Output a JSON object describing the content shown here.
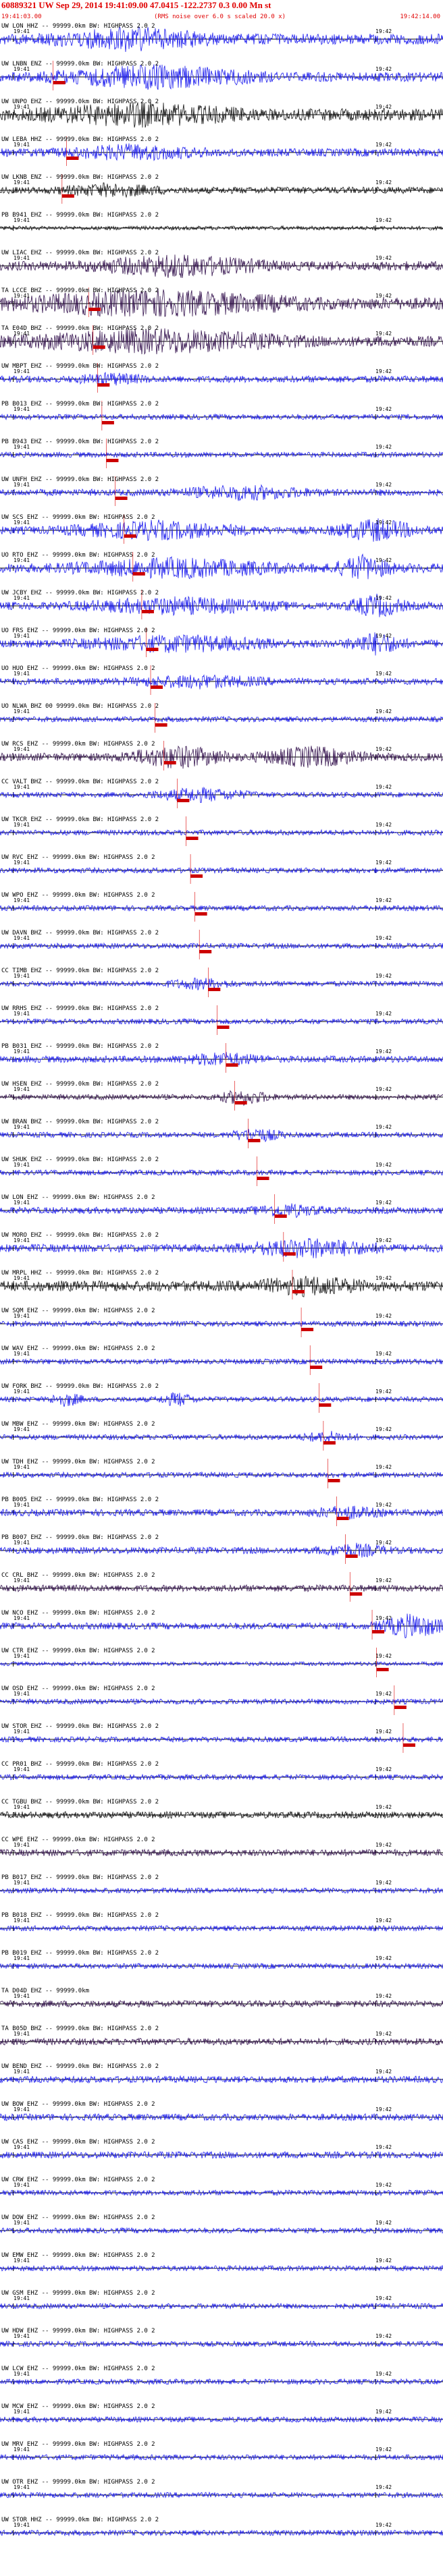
{
  "header": {
    "title": "60889321 UW Sep 29, 2014 19:41:09.00   47.0415 -122.2737   0.3 0.00 Mn st",
    "start_time": "19:41:03.00",
    "note": "(RMS noise over 6.0 s scaled 20.0 x)",
    "end_time": "19:42:14.00"
  },
  "tick_labels": {
    "first": "19:41",
    "second": "19:42"
  },
  "colors": {
    "blue": "#1a1aee",
    "black": "#111111",
    "purple": "#33114d",
    "red": "#dd0000",
    "pick": "#cc0000"
  },
  "traces": [
    {
      "label": "UW LON HHZ -- 99999.0km BW: HIGHPASS  2.0  2",
      "color": "blue",
      "amp": 0.8,
      "events": [
        [
          0.3,
          1.2,
          0.22
        ]
      ],
      "pick": null
    },
    {
      "label": "UW LNBN ENZ -- 99999.0km BW: HIGHPASS  2.0  2",
      "color": "blue",
      "amp": 0.7,
      "events": [
        [
          0.35,
          1.3,
          0.3
        ]
      ],
      "pick": 0.12
    },
    {
      "label": "UW UNPO EHZ -- 99999.0km BW: HIGHPASS  2.0  2",
      "color": "black",
      "amp": 0.9,
      "events": [
        [
          0.32,
          1.1,
          0.28
        ]
      ],
      "pick": null
    },
    {
      "label": "UW LEBA HHZ -- 99999.0km BW: HIGHPASS  2.0  2",
      "color": "blue",
      "amp": 0.6,
      "events": [
        [
          0.3,
          0.8,
          0.2
        ]
      ],
      "pick": 0.15
    },
    {
      "label": "UW LKNB ENZ -- 99999.0km BW: HIGHPASS  2.0  2",
      "color": "black",
      "amp": 0.5,
      "events": [
        [
          0.25,
          0.7,
          0.15
        ]
      ],
      "pick": 0.14
    },
    {
      "label": "PB B941 EHZ -- 99999.0km BW: HIGHPASS  2.0  2",
      "color": "black",
      "amp": 0.3,
      "events": [],
      "pick": null
    },
    {
      "label": "UW LIAC EHZ -- 99999.0km BW: HIGHPASS  2.0  2",
      "color": "purple",
      "amp": 0.7,
      "events": [
        [
          0.4,
          1.2,
          0.25
        ]
      ],
      "pick": null
    },
    {
      "label": "TA LCCE BHZ -- 99999.0km BW: HIGHPASS  2.0  2",
      "color": "purple",
      "amp": 0.9,
      "events": [
        [
          0.35,
          1.4,
          0.4
        ]
      ],
      "pick": 0.2
    },
    {
      "label": "TA E04D BHZ -- 99999.0km BW: HIGHPASS  2.0  2",
      "color": "purple",
      "amp": 0.8,
      "events": [
        [
          0.35,
          1.3,
          0.38
        ]
      ],
      "pick": 0.21
    },
    {
      "label": "UW MBPT EHZ -- 99999.0km BW: HIGHPASS  2.0  2",
      "color": "blue",
      "amp": 0.5,
      "events": [
        [
          0.25,
          0.6,
          0.1
        ]
      ],
      "pick": 0.22
    },
    {
      "label": "PB B013 EHZ -- 99999.0km BW: HIGHPASS  2.0  2",
      "color": "blue",
      "amp": 0.4,
      "events": [],
      "pick": 0.23
    },
    {
      "label": "PB B943 EHZ -- 99999.0km BW: HIGHPASS  2.0  2",
      "color": "blue",
      "amp": 0.4,
      "events": [],
      "pick": 0.24
    },
    {
      "label": "UW UNFH EHZ -- 99999.0km BW: HIGHPASS  2.0  2",
      "color": "blue",
      "amp": 0.5,
      "events": [
        [
          0.55,
          0.8,
          0.2
        ]
      ],
      "pick": 0.26
    },
    {
      "label": "UW SCS EHZ -- 99999.0km BW: HIGHPASS  2.0  2",
      "color": "blue",
      "amp": 0.6,
      "events": [
        [
          0.35,
          1.0,
          0.25
        ],
        [
          0.85,
          1.3,
          0.12
        ]
      ],
      "pick": 0.28
    },
    {
      "label": "UO RTO EHZ -- 99999.0km BW: HIGHPASS  2.0  2",
      "color": "blue",
      "amp": 0.7,
      "events": [
        [
          0.4,
          1.0,
          0.3
        ],
        [
          0.82,
          1.4,
          0.08
        ]
      ],
      "pick": 0.3
    },
    {
      "label": "UW JCBY EHZ -- 99999.0km BW: HIGHPASS  2.0  2",
      "color": "blue",
      "amp": 0.6,
      "events": [
        [
          0.4,
          0.9,
          0.28
        ],
        [
          0.85,
          1.3,
          0.08
        ]
      ],
      "pick": 0.32
    },
    {
      "label": "UO FRS EHZ -- 99999.0km BW: HIGHPASS  2.0  2",
      "color": "blue",
      "amp": 0.6,
      "events": [
        [
          0.4,
          0.9,
          0.28
        ],
        [
          0.85,
          1.3,
          0.08
        ]
      ],
      "pick": 0.33
    },
    {
      "label": "UO HUO EHZ -- 99999.0km BW: HIGHPASS  2.0  2",
      "color": "blue",
      "amp": 0.5,
      "events": [
        [
          0.45,
          0.7,
          0.2
        ]
      ],
      "pick": 0.34
    },
    {
      "label": "UO NLWA BHZ 00 99999.0km BW: HIGHPASS  2.0  2",
      "color": "blue",
      "amp": 0.4,
      "events": [],
      "pick": 0.35
    },
    {
      "label": "UW RCS EHZ -- 99999.0km BW: HIGHPASS  2.0  2",
      "color": "purple",
      "amp": 0.6,
      "events": [
        [
          0.4,
          1.3,
          0.15
        ],
        [
          0.7,
          1.2,
          0.15
        ]
      ],
      "pick": 0.37
    },
    {
      "label": "CC VALT BHZ -- 99999.0km BW: HIGHPASS  2.0  2",
      "color": "blue",
      "amp": 0.4,
      "events": [
        [
          0.45,
          0.8,
          0.15
        ]
      ],
      "pick": 0.4
    },
    {
      "label": "UW TKCR EHZ -- 99999.0km BW: HIGHPASS  2.0  2",
      "color": "blue",
      "amp": 0.4,
      "events": [],
      "pick": 0.42
    },
    {
      "label": "UW RVC EHZ -- 99999.0km BW: HIGHPASS  2.0  2",
      "color": "blue",
      "amp": 0.4,
      "events": [],
      "pick": 0.43
    },
    {
      "label": "UW WPO EHZ -- 99999.0km BW: HIGHPASS  2.0  2",
      "color": "blue",
      "amp": 0.4,
      "events": [],
      "pick": 0.44
    },
    {
      "label": "UW DAVN BHZ -- 99999.0km BW: HIGHPASS  2.0  2",
      "color": "blue",
      "amp": 0.4,
      "events": [],
      "pick": 0.45
    },
    {
      "label": "CC TIMB EHZ -- 99999.0km BW: HIGHPASS  2.0  2",
      "color": "blue",
      "amp": 0.4,
      "events": [
        [
          0.45,
          0.6,
          0.1
        ]
      ],
      "pick": 0.47
    },
    {
      "label": "UW RRHS EHZ -- 99999.0km BW: HIGHPASS  2.0  2",
      "color": "blue",
      "amp": 0.4,
      "events": [],
      "pick": 0.49
    },
    {
      "label": "PB B031 EHZ -- 99999.0km BW: HIGHPASS  2.0  2",
      "color": "blue",
      "amp": 0.5,
      "events": [
        [
          0.5,
          0.7,
          0.12
        ]
      ],
      "pick": 0.51
    },
    {
      "label": "UW HSEN EHZ -- 99999.0km BW: HIGHPASS  2.0  2",
      "color": "purple",
      "amp": 0.4,
      "events": [
        [
          0.55,
          0.9,
          0.08
        ]
      ],
      "pick": 0.53
    },
    {
      "label": "UW BRAN BHZ -- 99999.0km BW: HIGHPASS  2.0  2",
      "color": "blue",
      "amp": 0.4,
      "events": [
        [
          0.58,
          0.8,
          0.08
        ]
      ],
      "pick": 0.56
    },
    {
      "label": "UW SHUK EHZ -- 99999.0km BW: HIGHPASS  2.0  2",
      "color": "blue",
      "amp": 0.4,
      "events": [],
      "pick": 0.58
    },
    {
      "label": "UW LON EHZ -- 99999.0km BW: HIGHPASS  2.0  2",
      "color": "blue",
      "amp": 0.5,
      "events": [
        [
          0.65,
          0.7,
          0.1
        ]
      ],
      "pick": 0.62
    },
    {
      "label": "UW MORO EHZ -- 99999.0km BW: HIGHPASS  2.0  2",
      "color": "blue",
      "amp": 0.6,
      "events": [
        [
          0.7,
          1.1,
          0.2
        ]
      ],
      "pick": 0.64
    },
    {
      "label": "UW MRPL HHZ -- 99999.0km BW: HIGHPASS  2.0  2",
      "color": "black",
      "amp": 0.8,
      "events": [
        [
          0.7,
          0.9,
          0.15
        ]
      ],
      "pick": 0.66
    },
    {
      "label": "UW SQM EHZ -- 99999.0km BW: HIGHPASS  2.0  2",
      "color": "blue",
      "amp": 0.4,
      "events": [],
      "pick": 0.68
    },
    {
      "label": "UW WAV EHZ -- 99999.0km BW: HIGHPASS  2.0  2",
      "color": "blue",
      "amp": 0.4,
      "events": [],
      "pick": 0.7
    },
    {
      "label": "UW FORK BHZ -- 99999.0km BW: HIGHPASS  2.0  2",
      "color": "blue",
      "amp": 0.4,
      "events": [
        [
          0.15,
          0.8,
          0.05
        ],
        [
          0.4,
          0.8,
          0.05
        ]
      ],
      "pick": 0.72
    },
    {
      "label": "UW MBW EHZ -- 99999.0km BW: HIGHPASS  2.0  2",
      "color": "blue",
      "amp": 0.4,
      "events": [
        [
          0.74,
          0.6,
          0.08
        ]
      ],
      "pick": 0.73
    },
    {
      "label": "UW TDH EHZ -- 99999.0km BW: HIGHPASS  2.0  2",
      "color": "blue",
      "amp": 0.4,
      "events": [],
      "pick": 0.74
    },
    {
      "label": "PB B005 EHZ -- 99999.0km BW: HIGHPASS  2.0  2",
      "color": "blue",
      "amp": 0.5,
      "events": [
        [
          0.78,
          0.7,
          0.1
        ]
      ],
      "pick": 0.76
    },
    {
      "label": "PB B007 EHZ -- 99999.0km BW: HIGHPASS  2.0  2",
      "color": "blue",
      "amp": 0.5,
      "events": [
        [
          0.8,
          0.7,
          0.1
        ]
      ],
      "pick": 0.78
    },
    {
      "label": "CC CRL BHZ -- 99999.0km BW: HIGHPASS  2.0  2",
      "color": "purple",
      "amp": 0.5,
      "events": [],
      "pick": 0.79
    },
    {
      "label": "UW NCO EHZ -- 99999.0km BW: HIGHPASS  2.0  2",
      "color": "blue",
      "amp": 0.5,
      "events": [
        [
          0.93,
          1.5,
          0.1
        ]
      ],
      "pick": 0.84
    },
    {
      "label": "UW CTR EHZ -- 99999.0km BW: HIGHPASS  2.0  2",
      "color": "blue",
      "amp": 0.3,
      "events": [],
      "pick": 0.85
    },
    {
      "label": "UW OSD EHZ -- 99999.0km BW: HIGHPASS  2.0  2",
      "color": "blue",
      "amp": 0.4,
      "events": [],
      "pick": 0.89
    },
    {
      "label": "UW STOR EHZ -- 99999.0km BW: HIGHPASS  2.0  2",
      "color": "blue",
      "amp": 0.4,
      "events": [],
      "pick": 0.91
    },
    {
      "label": "CC PR01 BHZ -- 99999.0km BW: HIGHPASS  2.0  2",
      "color": "blue",
      "amp": 0.4,
      "events": [],
      "pick": null
    },
    {
      "label": "CC TGBU BHZ -- 99999.0km BW: HIGHPASS  2.0  2",
      "color": "black",
      "amp": 0.5,
      "events": [],
      "pick": null
    },
    {
      "label": "CC WPE EHZ -- 99999.0km BW: HIGHPASS  2.0  2",
      "color": "purple",
      "amp": 0.5,
      "events": [],
      "pick": null
    },
    {
      "label": "PB B017 EHZ -- 99999.0km BW: HIGHPASS  2.0  2",
      "color": "blue",
      "amp": 0.4,
      "events": [],
      "pick": null
    },
    {
      "label": "PB B018 EHZ -- 99999.0km BW: HIGHPASS  2.0  2",
      "color": "blue",
      "amp": 0.4,
      "events": [],
      "pick": null
    },
    {
      "label": "PB B019 EHZ -- 99999.0km BW: HIGHPASS  2.0  2",
      "color": "blue",
      "amp": 0.4,
      "events": [],
      "pick": null
    },
    {
      "label": "TA D04D EHZ -- 99999.0km",
      "color": "purple",
      "amp": 0.5,
      "events": [],
      "pick": null
    },
    {
      "label": "TA B05D BHZ -- 99999.0km BW: HIGHPASS  2.0  2",
      "color": "purple",
      "amp": 0.5,
      "events": [],
      "pick": null
    },
    {
      "label": "UW BEND EHZ -- 99999.0km BW: HIGHPASS  2.0  2",
      "color": "blue",
      "amp": 0.5,
      "events": [],
      "pick": null
    },
    {
      "label": "UW BOW EHZ -- 99999.0km BW: HIGHPASS  2.0  2",
      "color": "blue",
      "amp": 0.5,
      "events": [],
      "pick": null
    },
    {
      "label": "UW CAS EHZ -- 99999.0km BW: HIGHPASS  2.0  2",
      "color": "blue",
      "amp": 0.5,
      "events": [],
      "pick": null
    },
    {
      "label": "UW CRW EHZ -- 99999.0km BW: HIGHPASS  2.0  2",
      "color": "blue",
      "amp": 0.4,
      "events": [],
      "pick": null
    },
    {
      "label": "UW DOW EHZ -- 99999.0km BW: HIGHPASS  2.0  2",
      "color": "blue",
      "amp": 0.4,
      "events": [],
      "pick": null
    },
    {
      "label": "UW EMW EHZ -- 99999.0km BW: HIGHPASS  2.0  2",
      "color": "blue",
      "amp": 0.4,
      "events": [],
      "pick": null
    },
    {
      "label": "UW GSM EHZ -- 99999.0km BW: HIGHPASS  2.0  2",
      "color": "blue",
      "amp": 0.4,
      "events": [],
      "pick": null
    },
    {
      "label": "UW HDW EHZ -- 99999.0km BW: HIGHPASS  2.0  2",
      "color": "blue",
      "amp": 0.4,
      "events": [],
      "pick": null
    },
    {
      "label": "UW LCW EHZ -- 99999.0km BW: HIGHPASS  2.0  2",
      "color": "blue",
      "amp": 0.4,
      "events": [],
      "pick": null
    },
    {
      "label": "UW MCW EHZ -- 99999.0km BW: HIGHPASS  2.0  2",
      "color": "blue",
      "amp": 0.4,
      "events": [],
      "pick": null
    },
    {
      "label": "UW MRV EHZ -- 99999.0km BW: HIGHPASS  2.0  2",
      "color": "blue",
      "amp": 0.4,
      "events": [],
      "pick": null
    },
    {
      "label": "UW OTR EHZ -- 99999.0km BW: HIGHPASS  2.0  2",
      "color": "blue",
      "amp": 0.4,
      "events": [],
      "pick": null
    },
    {
      "label": "UW STOR HHZ -- 99999.0km BW: HIGHPASS  2.0  2",
      "color": "blue",
      "amp": 0.4,
      "events": [],
      "pick": null
    }
  ]
}
